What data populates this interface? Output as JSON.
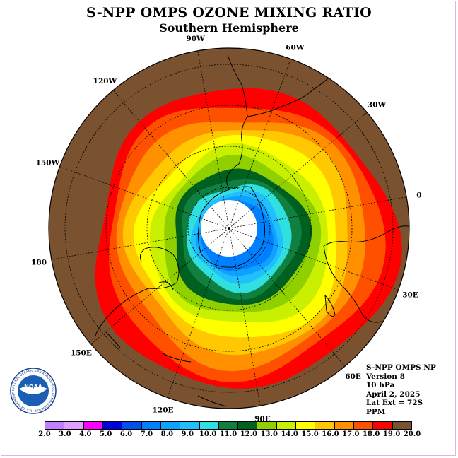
{
  "title": "S-NPP OMPS OZONE MIXING RATIO",
  "subtitle": "Southern Hemisphere",
  "longitude_labels": [
    "90W",
    "60W",
    "30W",
    "0",
    "30E",
    "60E",
    "90E",
    "120E",
    "150E",
    "180",
    "150W",
    "120W"
  ],
  "info": {
    "line1": "S-NPP OMPS NP",
    "line2": "Version 8",
    "line3": "10 hPa",
    "line4": "April 2, 2025",
    "line5": "Lat Ext = 72S",
    "line6": "PPM"
  },
  "logo": {
    "text": "NOAA",
    "ring_text": "NATIONAL OCEANIC AND ATMOSPHERIC ADMINISTRATION · U.S. DEPARTMENT OF COMMERCE"
  },
  "colorbar": {
    "ticks": [
      "2.0",
      "3.0",
      "4.0",
      "5.0",
      "6.0",
      "7.0",
      "8.0",
      "9.0",
      "10.0",
      "11.0",
      "12.0",
      "13.0",
      "14.0",
      "15.0",
      "16.0",
      "17.0",
      "18.0",
      "19.0",
      "20.0"
    ],
    "colors": [
      "#c080ff",
      "#e0a0ff",
      "#ff00ff",
      "#0000e0",
      "#0050f0",
      "#0080ff",
      "#10a0ff",
      "#20c0ff",
      "#30e0e0",
      "#108040",
      "#006020",
      "#90d000",
      "#c8f000",
      "#ffff00",
      "#ffc800",
      "#ff9000",
      "#ff5000",
      "#ff0000",
      "#7a5230"
    ]
  },
  "map_colors": {
    "background": "#7a5230",
    "polar_night": "#ffffff"
  }
}
